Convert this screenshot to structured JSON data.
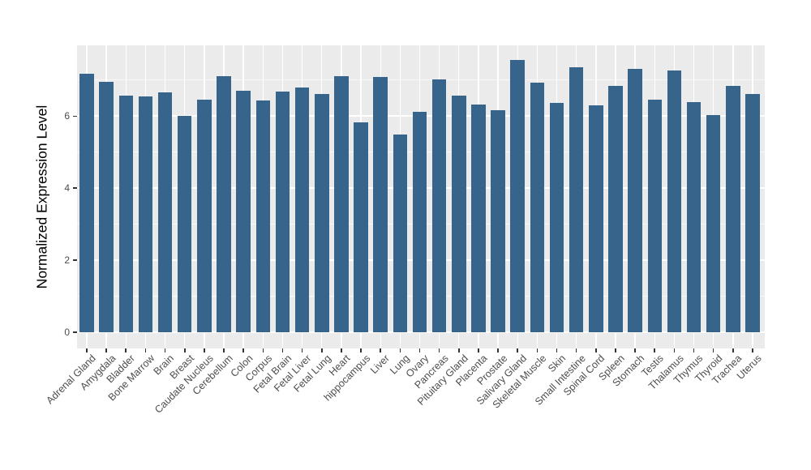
{
  "chart_data": {
    "type": "bar",
    "title": "",
    "xlabel": "",
    "ylabel": "Normalized Expression Level",
    "legend": null,
    "grid": true,
    "panel_background": "#EBEBEB",
    "grid_color": "#FFFFFF",
    "bar_color": "#36648B",
    "tick_label_color": "#4D4D4D",
    "axis_title_color": "#000000",
    "ylim": [
      0,
      7.96
    ],
    "yticks": [
      0,
      2,
      4,
      6
    ],
    "yticks_minor": [
      1,
      3,
      5,
      7
    ],
    "categories": [
      "Adrenal Gland",
      "Amygdala",
      "Bladder",
      "Bone Marrow",
      "Brain",
      "Breast",
      "Caudate Nucleus",
      "Cerebellum",
      "Colon",
      "Corpus",
      "Fetal Brain",
      "Fetal Liver",
      "Fetal Lung",
      "Heart",
      "hippocampus",
      "Liver",
      "Lung",
      "Ovary",
      "Pancreas",
      "Pituitary Gland",
      "Placenta",
      "Prostate",
      "Salivary Gland",
      "Skeletal Muscle",
      "Skin",
      "Small Intestine",
      "Spinal Cord",
      "Spleen",
      "Stomach",
      "Testis",
      "Thalamus",
      "Thymus",
      "Thyroid",
      "Trachea",
      "Uterus"
    ],
    "values": [
      7.18,
      6.95,
      6.56,
      6.55,
      6.67,
      6.0,
      6.45,
      7.11,
      6.71,
      6.43,
      6.69,
      6.79,
      6.62,
      7.11,
      5.83,
      7.08,
      5.49,
      6.11,
      7.03,
      6.56,
      6.32,
      6.17,
      7.56,
      6.94,
      6.37,
      7.35,
      6.29,
      6.84,
      7.31,
      6.46,
      7.26,
      6.39,
      6.04,
      6.84,
      6.62
    ]
  }
}
